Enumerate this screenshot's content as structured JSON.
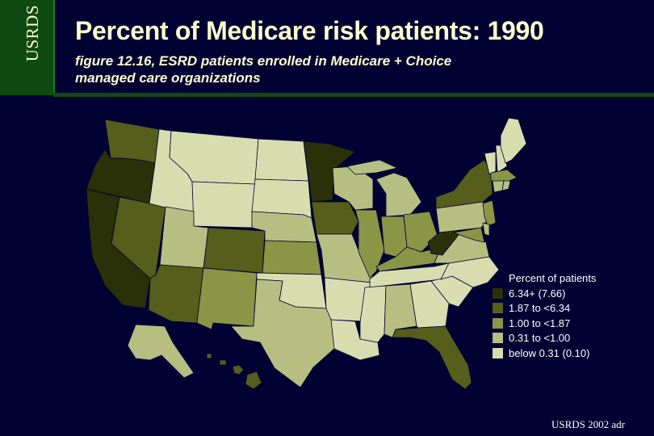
{
  "side_tab": "USRDS",
  "title": "Percent of Medicare risk patients: 1990",
  "subtitle_lines": [
    "figure 12.16, ESRD patients enrolled in Medicare + Choice",
    "managed care organizations"
  ],
  "legend": {
    "title": "Percent of patients",
    "items": [
      {
        "label": "6.34+ (7.66)",
        "color": "#2a3008"
      },
      {
        "label": "1.87 to <6.34",
        "color": "#555e1a"
      },
      {
        "label": "1.00 to <1.87",
        "color": "#8b9546"
      },
      {
        "label": "0.31 to <1.00",
        "color": "#b6be82"
      },
      {
        "label": "below 0.31 (0.10)",
        "color": "#d8ddb0"
      }
    ]
  },
  "credit": "USRDS 2002 adr",
  "states": [
    {
      "id": "WA",
      "cls": 1
    },
    {
      "id": "OR",
      "cls": 0
    },
    {
      "id": "CA",
      "cls": 0
    },
    {
      "id": "NV",
      "cls": 1
    },
    {
      "id": "ID",
      "cls": 4
    },
    {
      "id": "MT",
      "cls": 4
    },
    {
      "id": "WY",
      "cls": 4
    },
    {
      "id": "UT",
      "cls": 3
    },
    {
      "id": "AZ",
      "cls": 1
    },
    {
      "id": "CO",
      "cls": 1
    },
    {
      "id": "NM",
      "cls": 2
    },
    {
      "id": "ND",
      "cls": 4
    },
    {
      "id": "SD",
      "cls": 4
    },
    {
      "id": "NE",
      "cls": 3
    },
    {
      "id": "KS",
      "cls": 2
    },
    {
      "id": "OK",
      "cls": 4
    },
    {
      "id": "TX",
      "cls": 3
    },
    {
      "id": "MN",
      "cls": 0
    },
    {
      "id": "IA",
      "cls": 1
    },
    {
      "id": "MO",
      "cls": 3
    },
    {
      "id": "AR",
      "cls": 4
    },
    {
      "id": "LA",
      "cls": 4
    },
    {
      "id": "WI",
      "cls": 3
    },
    {
      "id": "IL",
      "cls": 2
    },
    {
      "id": "MI",
      "cls": 3
    },
    {
      "id": "IN",
      "cls": 2
    },
    {
      "id": "OH",
      "cls": 2
    },
    {
      "id": "KY",
      "cls": 2
    },
    {
      "id": "TN",
      "cls": 4
    },
    {
      "id": "MS",
      "cls": 4
    },
    {
      "id": "AL",
      "cls": 3
    },
    {
      "id": "GA",
      "cls": 4
    },
    {
      "id": "FL",
      "cls": 1
    },
    {
      "id": "SC",
      "cls": 4
    },
    {
      "id": "NC",
      "cls": 4
    },
    {
      "id": "VA",
      "cls": 3
    },
    {
      "id": "WV",
      "cls": 0
    },
    {
      "id": "PA",
      "cls": 3
    },
    {
      "id": "NY",
      "cls": 1
    },
    {
      "id": "VT",
      "cls": 4
    },
    {
      "id": "NH",
      "cls": 4
    },
    {
      "id": "ME",
      "cls": 4
    },
    {
      "id": "MA",
      "cls": 2
    },
    {
      "id": "CT",
      "cls": 3
    },
    {
      "id": "RI",
      "cls": 3
    },
    {
      "id": "NJ",
      "cls": 2
    },
    {
      "id": "DE",
      "cls": 3
    },
    {
      "id": "MD",
      "cls": 2
    },
    {
      "id": "AK",
      "cls": 3
    },
    {
      "id": "HI",
      "cls": 1
    }
  ]
}
